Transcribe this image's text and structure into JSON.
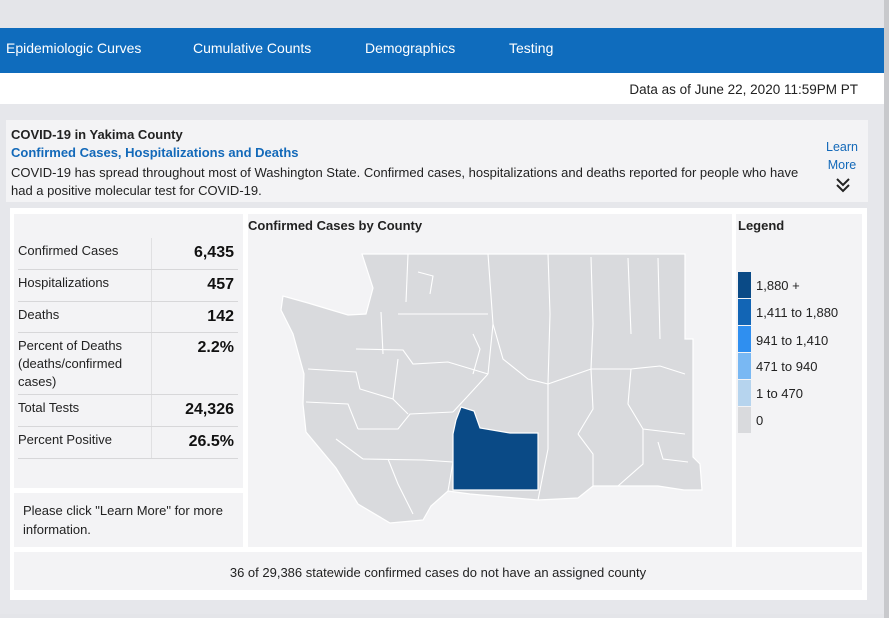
{
  "nav": {
    "tabs": [
      {
        "label": "Epidemiologic Curves"
      },
      {
        "label": "Cumulative Counts"
      },
      {
        "label": "Demographics"
      },
      {
        "label": "Testing"
      }
    ]
  },
  "data_as_of": "Data as of June 22, 2020 11:59PM PT",
  "info": {
    "title": "COVID-19 in Yakima County",
    "subtitle": "Confirmed Cases, Hospitalizations and Deaths",
    "description": "COVID-19 has spread throughout most of Washington State. Confirmed cases, hospitalizations and deaths reported for people who have had a positive molecular test for COVID-19.",
    "learn_more": "Learn More",
    "chevron_icon": "double-chevron-down-icon"
  },
  "stats": [
    {
      "label": "Confirmed Cases",
      "value": "6,435"
    },
    {
      "label": "Hospitalizations",
      "value": "457"
    },
    {
      "label": "Deaths",
      "value": "142"
    },
    {
      "label": "Percent of Deaths (deaths/confirmed cases)",
      "value": "2.2%"
    },
    {
      "label": "Total Tests",
      "value": "24,326"
    },
    {
      "label": "Percent Positive",
      "value": "26.5%"
    }
  ],
  "note": "Please click \"Learn More\" for more information.",
  "map": {
    "title": "Confirmed Cases by County",
    "base_color": "#d9dadd",
    "highlight_color": "#0a4a86",
    "border_color": "#ffffff"
  },
  "legend": {
    "title": "Legend",
    "items": [
      {
        "label": "1,880 +",
        "color": "#0a4a86"
      },
      {
        "label": "1,411 to 1,880",
        "color": "#1265b5"
      },
      {
        "label": "941 to 1,410",
        "color": "#2f8ff0"
      },
      {
        "label": "471 to 940",
        "color": "#79b8f3"
      },
      {
        "label": "1 to 470",
        "color": "#b6d4ee"
      },
      {
        "label": "0",
        "color": "#d9dadd"
      }
    ]
  },
  "footer": "36 of 29,386 statewide confirmed cases do not have an assigned county",
  "colors": {
    "accent": "#0f6cbd",
    "link": "#1369b9"
  }
}
